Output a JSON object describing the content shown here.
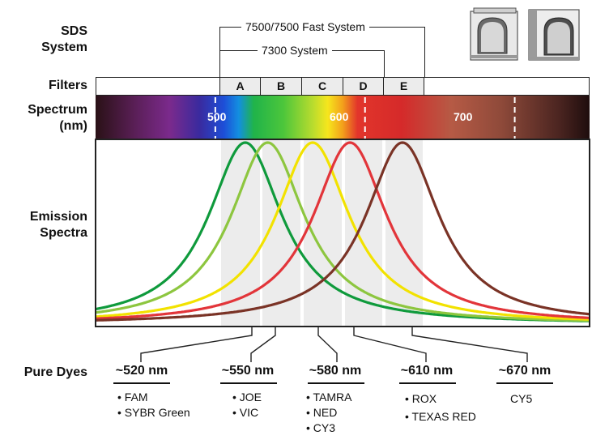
{
  "labels": {
    "sds_system": [
      "SDS",
      "System"
    ],
    "filters": "Filters",
    "spectrum": [
      "Spectrum",
      "(nm)"
    ],
    "emission": [
      "Emission",
      "Spectra"
    ],
    "pure_dyes": "Pure Dyes"
  },
  "systems": {
    "fast": "7500/7500 Fast System",
    "s7300": "7300 System"
  },
  "filters": [
    "A",
    "B",
    "C",
    "D",
    "E"
  ],
  "spectrum_ticks": [
    "500",
    "600",
    "700"
  ],
  "chart_data": {
    "type": "line",
    "x_range_nm": [
      420,
      750
    ],
    "series": [
      {
        "peak_nm": 520,
        "color": "#0f9a3c"
      },
      {
        "peak_nm": 535,
        "color": "#8dc63f"
      },
      {
        "peak_nm": 565,
        "color": "#f2e200"
      },
      {
        "peak_nm": 590,
        "color": "#e2353a"
      },
      {
        "peak_nm": 625,
        "color": "#7a3326"
      }
    ]
  },
  "dyes": [
    {
      "wavelength": "~520 nm",
      "names": [
        "FAM",
        "SYBR Green"
      ]
    },
    {
      "wavelength": "~550 nm",
      "names": [
        "JOE",
        "VIC"
      ]
    },
    {
      "wavelength": "~580 nm",
      "names": [
        "TAMRA",
        "NED",
        "CY3"
      ]
    },
    {
      "wavelength": "~610 nm",
      "names": [
        "ROX",
        "TEXAS RED"
      ]
    },
    {
      "wavelength": "~670 nm",
      "names": [
        "CY5"
      ]
    }
  ],
  "icons": [
    "instrument-7500-icon",
    "instrument-7300-icon"
  ]
}
